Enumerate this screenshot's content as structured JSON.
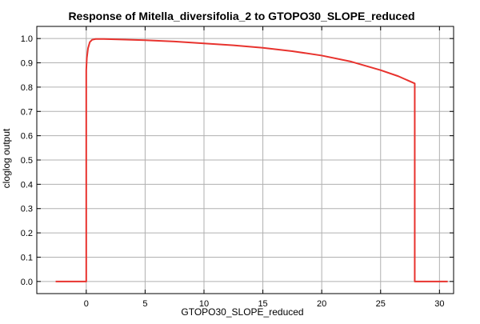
{
  "chart_data": {
    "type": "line",
    "title": "Response of Mitella_diversifolia_2 to GTOPO30_SLOPE_reduced",
    "xlabel": "GTOPO30_SLOPE_reduced",
    "ylabel": "cloglog output",
    "xlim": [
      -4.2,
      31.2
    ],
    "ylim": [
      -0.05,
      1.05
    ],
    "x_ticks": [
      0,
      5,
      10,
      15,
      20,
      25,
      30
    ],
    "x_tick_labels": [
      "0",
      "5",
      "10",
      "15",
      "20",
      "25",
      "30"
    ],
    "y_ticks": [
      0.0,
      0.1,
      0.2,
      0.3,
      0.4,
      0.5,
      0.6,
      0.7,
      0.8,
      0.9,
      1.0
    ],
    "y_tick_labels": [
      "0.0",
      "0.1",
      "0.2",
      "0.3",
      "0.4",
      "0.5",
      "0.6",
      "0.7",
      "0.8",
      "0.9",
      "1.0"
    ],
    "grid": true,
    "line_color": "#e8332e",
    "series": [
      {
        "x": [
          -2.6,
          0.0,
          0.0,
          0.05,
          0.15,
          0.3,
          0.5,
          0.8,
          1.5,
          3,
          5,
          7.5,
          10,
          12.5,
          15,
          17.5,
          20,
          22.5,
          25,
          26.5,
          27.9,
          27.9,
          28.1,
          30.7
        ],
        "y": [
          0.0,
          0.0,
          0.87,
          0.92,
          0.96,
          0.985,
          0.995,
          0.998,
          0.998,
          0.996,
          0.993,
          0.988,
          0.98,
          0.972,
          0.962,
          0.948,
          0.93,
          0.905,
          0.87,
          0.845,
          0.815,
          0.0,
          0.0,
          0.0
        ]
      }
    ]
  }
}
